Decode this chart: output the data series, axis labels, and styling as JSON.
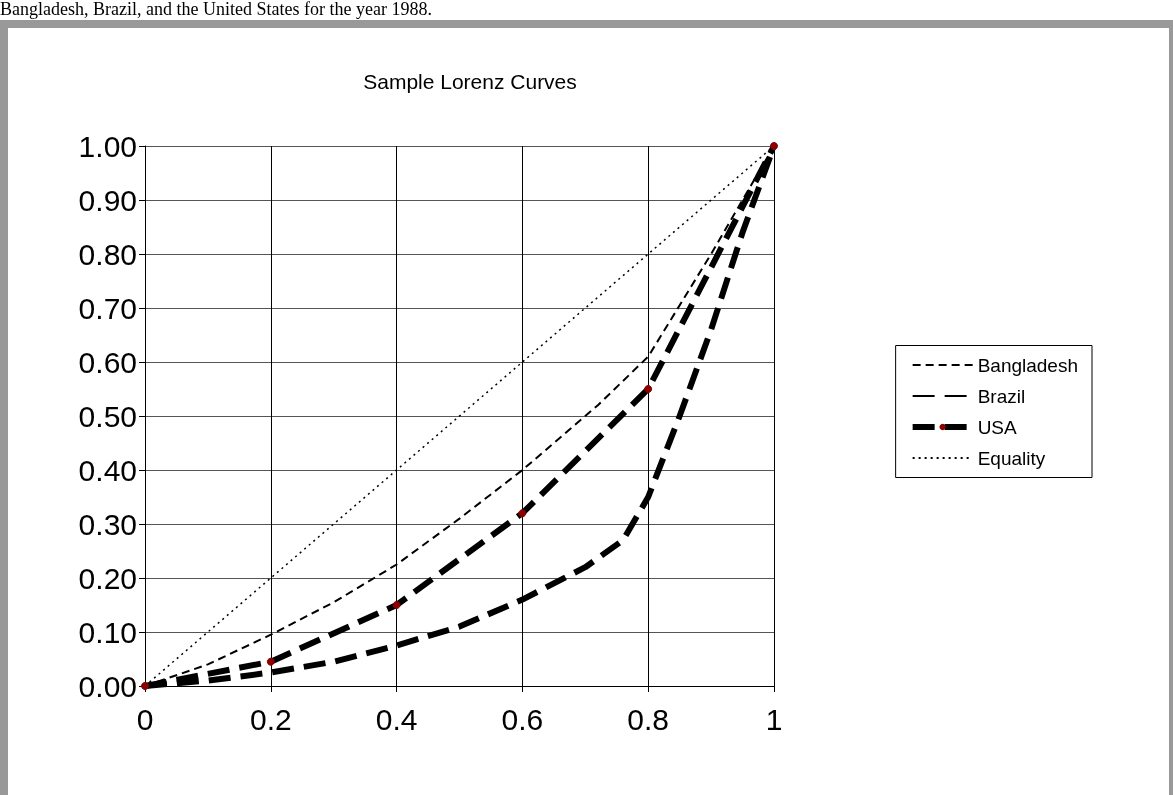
{
  "chart_data": {
    "type": "line",
    "title": "Sample Lorenz Curves",
    "annotations": [
      "Bangladesh, Brazil, and the United States for the year 1988."
    ],
    "series": [
      {
        "name": "Bangladesh",
        "color": "#000000",
        "line_style": "dashed",
        "marker": "none",
        "x": [
          0,
          0.1,
          0.2,
          0.3,
          0.4,
          0.5,
          0.6,
          0.72,
          0.8,
          0.9,
          1
        ],
        "values": [
          0,
          0.04,
          0.095,
          0.155,
          0.225,
          0.31,
          0.4,
          0.52,
          0.61,
          0.8,
          1
        ]
      },
      {
        "name": "Brazil",
        "color": "#000000",
        "line_style": "dashed",
        "marker": "none",
        "x": [
          0,
          0.1,
          0.2,
          0.3,
          0.4,
          0.5,
          0.6,
          0.7,
          0.76,
          0.8,
          0.85,
          0.9,
          0.95,
          1
        ],
        "values": [
          0,
          0.01,
          0.025,
          0.045,
          0.075,
          0.11,
          0.16,
          0.22,
          0.27,
          0.35,
          0.5,
          0.66,
          0.84,
          1
        ]
      },
      {
        "name": "USA",
        "color": "#000000",
        "line_style": "dashed",
        "marker": "circle",
        "x": [
          0,
          0.2,
          0.4,
          0.6,
          0.8,
          1
        ],
        "values": [
          0,
          0.045,
          0.15,
          0.32,
          0.55,
          1
        ]
      },
      {
        "name": "Equality",
        "color": "#000000",
        "line_style": "dotted",
        "marker": "none",
        "x": [
          0,
          1
        ],
        "values": [
          0,
          1
        ]
      }
    ],
    "xlim": [
      0,
      1
    ],
    "xticks": [
      0,
      0.2,
      0.4,
      0.6,
      0.8,
      1
    ],
    "ylim": [
      0,
      1
    ],
    "yticks": [
      {
        "value": 0,
        "label": "0.00"
      },
      {
        "value": 0.1,
        "label": "0.10"
      },
      {
        "value": 0.2,
        "label": "0.20"
      },
      {
        "value": 0.3,
        "label": "0.30"
      },
      {
        "value": 0.4,
        "label": "0.40"
      },
      {
        "value": 0.5,
        "label": "0.50"
      },
      {
        "value": 0.6,
        "label": "0.60"
      },
      {
        "value": 0.7,
        "label": "0.70"
      },
      {
        "value": 0.8,
        "label": "0.80"
      },
      {
        "value": 0.9,
        "label": "0.90"
      },
      {
        "value": 1,
        "label": "1.00"
      }
    ],
    "grid": true,
    "legend": "right"
  }
}
